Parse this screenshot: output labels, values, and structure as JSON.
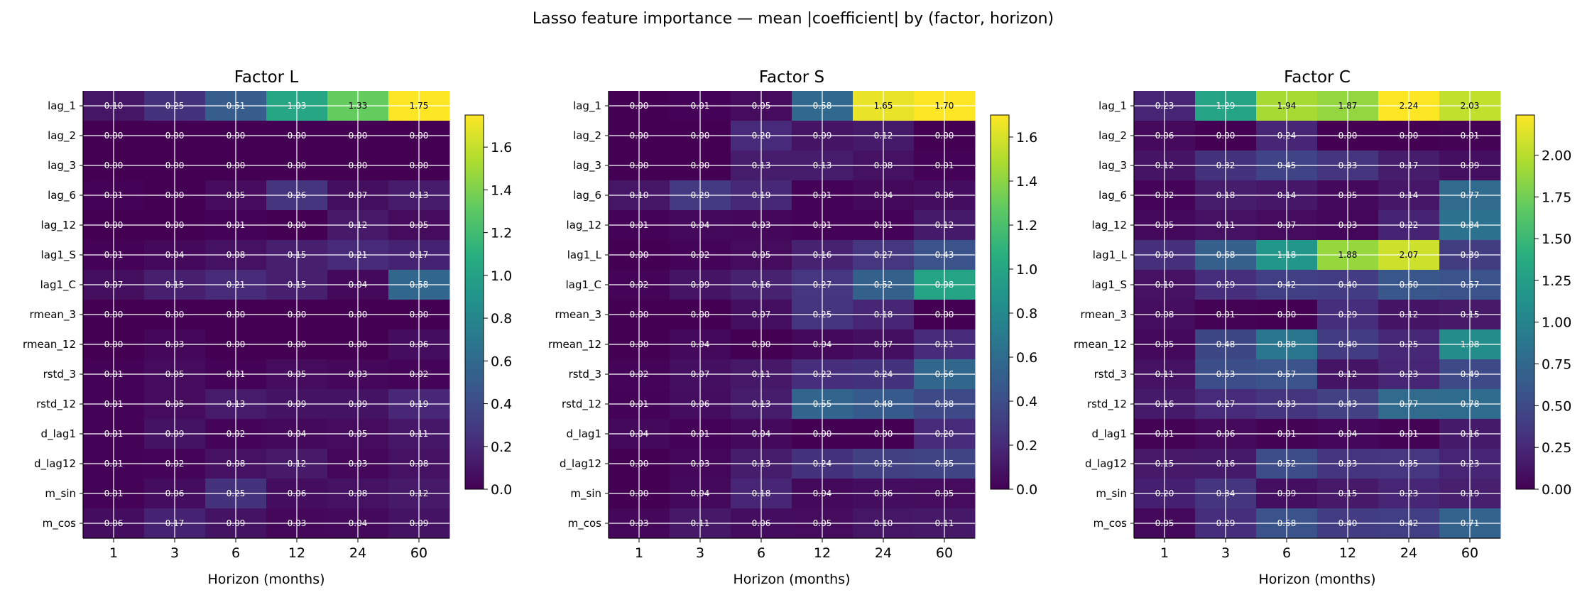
{
  "figure": {
    "suptitle": "Lasso feature importance — mean |coefficient| by (factor, horizon)"
  },
  "chart_data": [
    {
      "type": "heatmap",
      "title": "Factor L",
      "xlabel": "Horizon (months)",
      "ylabel": "",
      "x": [
        "1",
        "3",
        "6",
        "12",
        "24",
        "60"
      ],
      "y": [
        "lag_1",
        "lag_2",
        "lag_3",
        "lag_6",
        "lag_12",
        "lag1_S",
        "lag1_C",
        "rmean_3",
        "rmean_12",
        "rstd_3",
        "rstd_12",
        "d_lag1",
        "d_lag12",
        "m_sin",
        "m_cos"
      ],
      "values": [
        [
          0.1,
          0.25,
          0.51,
          1.03,
          1.33,
          1.75
        ],
        [
          0.0,
          0.0,
          0.0,
          0.0,
          0.0,
          0.0
        ],
        [
          0.0,
          0.0,
          0.0,
          0.0,
          0.0,
          0.0
        ],
        [
          0.01,
          0.0,
          0.05,
          0.26,
          0.07,
          0.13
        ],
        [
          0.0,
          0.0,
          0.01,
          0.0,
          0.12,
          0.05
        ],
        [
          0.01,
          0.04,
          0.08,
          0.15,
          0.21,
          0.17
        ],
        [
          0.07,
          0.15,
          0.21,
          0.15,
          0.04,
          0.58
        ],
        [
          0.0,
          0.0,
          0.0,
          0.0,
          0.0,
          0.0
        ],
        [
          0.0,
          0.03,
          0.0,
          0.0,
          0.0,
          0.06
        ],
        [
          0.01,
          0.05,
          0.01,
          0.05,
          0.03,
          0.02
        ],
        [
          0.01,
          0.05,
          0.13,
          0.09,
          0.09,
          0.19
        ],
        [
          0.01,
          0.09,
          0.02,
          0.04,
          0.05,
          0.11
        ],
        [
          0.01,
          0.02,
          0.08,
          0.12,
          0.03,
          0.08
        ],
        [
          0.01,
          0.06,
          0.25,
          0.06,
          0.08,
          0.12
        ],
        [
          0.06,
          0.17,
          0.09,
          0.03,
          0.04,
          0.09
        ]
      ],
      "colorbar": {
        "range": [
          0,
          1.75
        ],
        "ticks": [
          "0.0",
          "0.2",
          "0.4",
          "0.6",
          "0.8",
          "1.0",
          "1.2",
          "1.4",
          "1.6"
        ]
      }
    },
    {
      "type": "heatmap",
      "title": "Factor S",
      "xlabel": "Horizon (months)",
      "ylabel": "",
      "x": [
        "1",
        "3",
        "6",
        "12",
        "24",
        "60"
      ],
      "y": [
        "lag_1",
        "lag_2",
        "lag_3",
        "lag_6",
        "lag_12",
        "lag1_L",
        "lag1_C",
        "rmean_3",
        "rmean_12",
        "rstd_3",
        "rstd_12",
        "d_lag1",
        "d_lag12",
        "m_sin",
        "m_cos"
      ],
      "values": [
        [
          0.0,
          0.01,
          0.05,
          0.58,
          1.65,
          1.7
        ],
        [
          0.0,
          0.0,
          0.2,
          0.09,
          0.12,
          0.0
        ],
        [
          0.0,
          0.0,
          0.13,
          0.13,
          0.08,
          0.01
        ],
        [
          0.1,
          0.29,
          0.19,
          0.01,
          0.04,
          0.06
        ],
        [
          0.01,
          0.04,
          0.03,
          0.01,
          0.01,
          0.12
        ],
        [
          0.0,
          0.02,
          0.05,
          0.16,
          0.27,
          0.43
        ],
        [
          0.02,
          0.09,
          0.16,
          0.27,
          0.52,
          0.98
        ],
        [
          0.0,
          0.0,
          0.07,
          0.25,
          0.18,
          0.0
        ],
        [
          0.0,
          0.04,
          0.0,
          0.04,
          0.07,
          0.21
        ],
        [
          0.02,
          0.07,
          0.11,
          0.22,
          0.24,
          0.56
        ],
        [
          0.01,
          0.06,
          0.13,
          0.55,
          0.48,
          0.38
        ],
        [
          0.04,
          0.01,
          0.04,
          0.0,
          0.0,
          0.2
        ],
        [
          0.0,
          0.03,
          0.13,
          0.24,
          0.32,
          0.35
        ],
        [
          0.0,
          0.04,
          0.18,
          0.04,
          0.06,
          0.05
        ],
        [
          0.03,
          0.11,
          0.06,
          0.05,
          0.1,
          0.11
        ]
      ],
      "colorbar": {
        "range": [
          0,
          1.7
        ],
        "ticks": [
          "0.0",
          "0.2",
          "0.4",
          "0.6",
          "0.8",
          "1.0",
          "1.2",
          "1.4",
          "1.6"
        ]
      }
    },
    {
      "type": "heatmap",
      "title": "Factor C",
      "xlabel": "Horizon (months)",
      "ylabel": "",
      "x": [
        "1",
        "3",
        "6",
        "12",
        "24",
        "60"
      ],
      "y": [
        "lag_1",
        "lag_2",
        "lag_3",
        "lag_6",
        "lag_12",
        "lag1_L",
        "lag1_S",
        "rmean_3",
        "rmean_12",
        "rstd_3",
        "rstd_12",
        "d_lag1",
        "d_lag12",
        "m_sin",
        "m_cos"
      ],
      "values": [
        [
          0.23,
          1.29,
          1.94,
          1.87,
          2.24,
          2.03
        ],
        [
          0.06,
          0.0,
          0.24,
          0.0,
          0.0,
          0.01
        ],
        [
          0.12,
          0.32,
          0.45,
          0.33,
          0.17,
          0.09
        ],
        [
          0.02,
          0.18,
          0.14,
          0.05,
          0.14,
          0.77
        ],
        [
          0.05,
          0.11,
          0.07,
          0.03,
          0.22,
          0.84
        ],
        [
          0.3,
          0.68,
          1.18,
          1.88,
          2.07,
          0.39
        ],
        [
          0.1,
          0.29,
          0.42,
          0.4,
          0.6,
          0.57
        ],
        [
          0.08,
          0.01,
          0.0,
          0.29,
          0.12,
          0.15
        ],
        [
          0.05,
          0.48,
          0.88,
          0.4,
          0.25,
          1.08
        ],
        [
          0.11,
          0.53,
          0.57,
          0.12,
          0.23,
          0.49
        ],
        [
          0.16,
          0.27,
          0.33,
          0.43,
          0.77,
          0.78
        ],
        [
          0.01,
          0.06,
          0.01,
          0.04,
          0.01,
          0.16
        ],
        [
          0.15,
          0.16,
          0.52,
          0.33,
          0.35,
          0.23
        ],
        [
          0.2,
          0.34,
          0.09,
          0.15,
          0.23,
          0.19
        ],
        [
          0.05,
          0.29,
          0.58,
          0.4,
          0.42,
          0.71
        ]
      ],
      "colorbar": {
        "range": [
          0,
          2.24
        ],
        "ticks": [
          "0.00",
          "0.25",
          "0.50",
          "0.75",
          "1.00",
          "1.25",
          "1.50",
          "1.75",
          "2.00"
        ]
      }
    }
  ]
}
